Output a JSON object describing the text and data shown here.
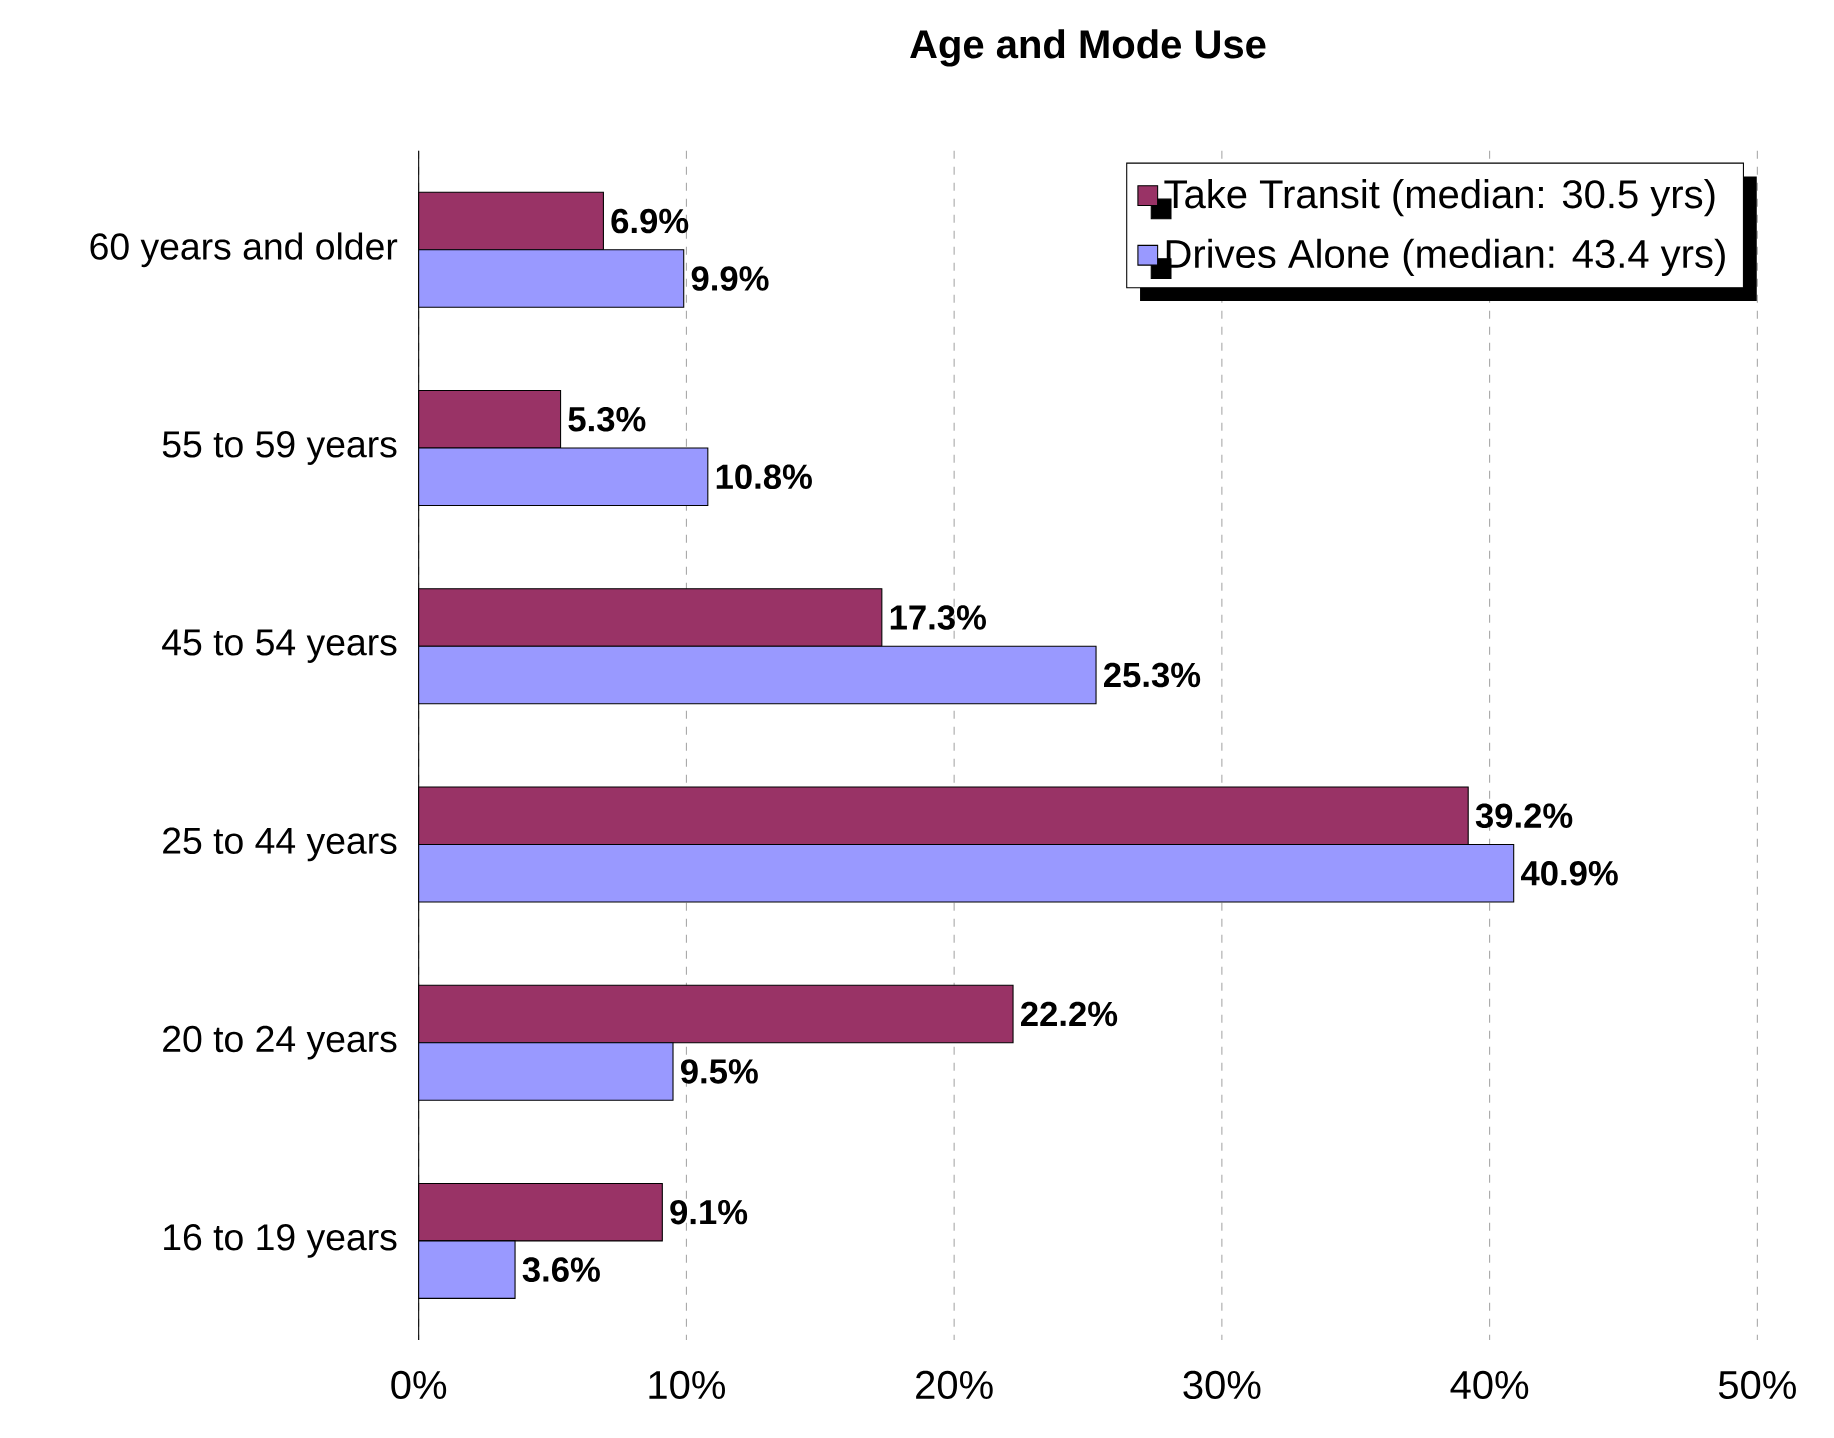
{
  "chart_data": {
    "type": "bar",
    "orientation": "horizontal",
    "title": "Age and Mode Use",
    "categories": [
      "60 years and older",
      "55 to 59 years",
      "45 to 54 years",
      "25 to 44 years",
      "20 to 24 years",
      "16 to 19 years"
    ],
    "series": [
      {
        "name": "Take Transit (median: 30.5 yrs)",
        "color": "#993366",
        "values": [
          6.9,
          5.3,
          17.3,
          39.2,
          22.2,
          9.1
        ],
        "value_labels": [
          "6.9%",
          "5.3%",
          "17.3%",
          "39.2%",
          "22.2%",
          "9.1%"
        ]
      },
      {
        "name": "Drives Alone (median: 43.4 yrs)",
        "color": "#9999ff",
        "values": [
          9.9,
          10.8,
          25.3,
          40.9,
          9.5,
          3.6
        ],
        "value_labels": [
          "9.9%",
          "10.8%",
          "25.3%",
          "40.9%",
          "9.5%",
          "3.6%"
        ]
      }
    ],
    "xlim": [
      0,
      50
    ],
    "xticks": [
      {
        "value": 0,
        "label": "0%"
      },
      {
        "value": 10,
        "label": "10%"
      },
      {
        "value": 20,
        "label": "20%"
      },
      {
        "value": 30,
        "label": "30%"
      },
      {
        "value": 40,
        "label": "40%"
      },
      {
        "value": 50,
        "label": "50%"
      }
    ],
    "grid": "x",
    "legend": "top right"
  }
}
